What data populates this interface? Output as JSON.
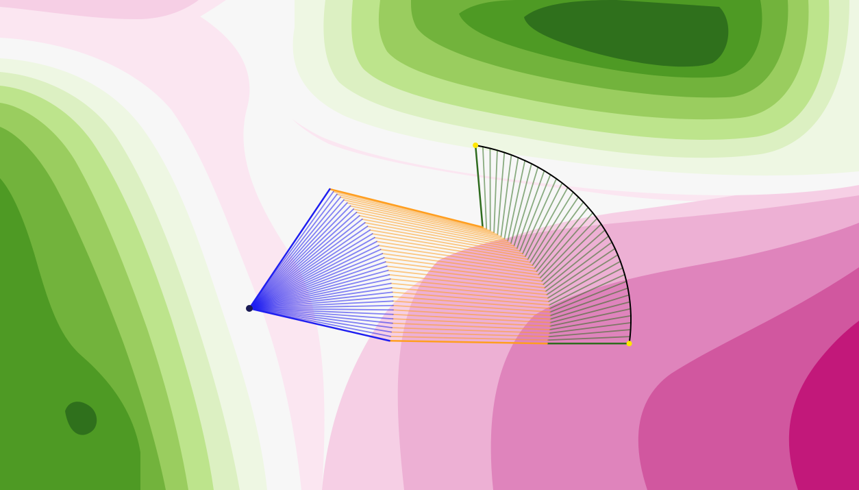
{
  "figure": {
    "kind": "three-link planar arm sweep over contour field",
    "frame_count": 40,
    "link_lengths": [
      210,
      230,
      120
    ],
    "base": [
      364,
      450
    ],
    "shoulder_angle_deg": {
      "start": -56,
      "end": 13
    },
    "elbow_relative_deg": {
      "start": 70,
      "end": -12
    },
    "wrist_relative_deg": {
      "start": -109,
      "end": -1
    }
  },
  "colors": {
    "arm_link_1": "#1f1ff0",
    "arm_link_2": "#ff9e1f",
    "arm_link_3": "#2e6b1e",
    "trace": "#000000",
    "start_marker": "#ffe600",
    "base_marker": "#1a1a55",
    "contour_levels": [
      "#2f701c",
      "#4e9a24",
      "#72b33c",
      "#9acd5f",
      "#bde48c",
      "#dcf0c2",
      "#eef7e3",
      "#f7f7f7",
      "#fbe6f1",
      "#f6cfe5",
      "#edb0d4",
      "#df84bc",
      "#d1579f",
      "#c2187a"
    ]
  }
}
